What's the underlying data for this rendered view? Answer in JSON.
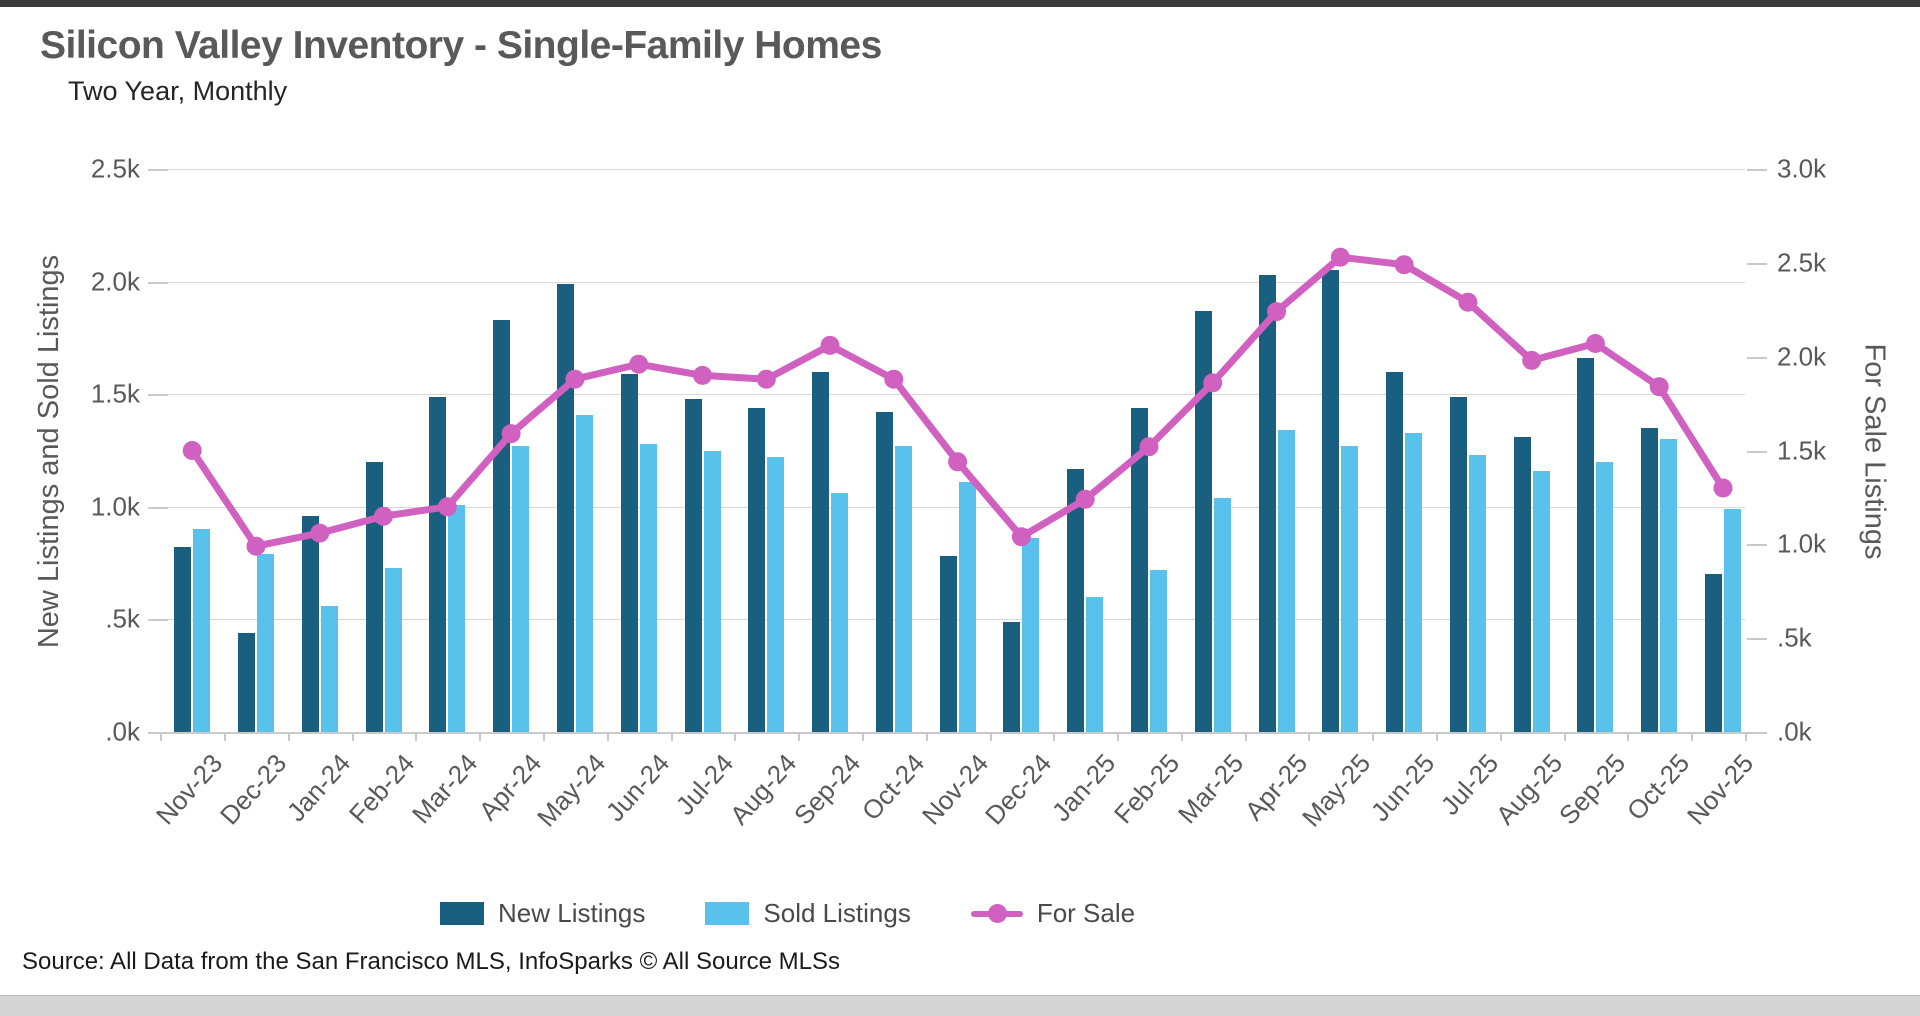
{
  "page": {
    "title": "Silicon Valley Inventory - Single-Family Homes",
    "subtitle": "Two Year, Monthly",
    "source": "Source: All Data from the San Francisco MLS, InfoSparks © All Source MLSs"
  },
  "legend": {
    "items": [
      {
        "label": "New Listings",
        "color": "#1a5f7f",
        "type": "bar"
      },
      {
        "label": "Sold Listings",
        "color": "#58c1ec",
        "type": "bar"
      },
      {
        "label": "For Sale",
        "color": "#d161c0",
        "type": "line"
      }
    ]
  },
  "colors": {
    "new_listings": "#1a5f7f",
    "sold_listings": "#58c1ec",
    "for_sale": "#d161c0",
    "gridline": "#d9d9d9",
    "axis_text": "#595959"
  },
  "chart_data": {
    "type": "bar",
    "subtype": "grouped-bars-with-line",
    "title": "Silicon Valley Inventory - Single-Family Homes",
    "subtitle": "Two Year, Monthly",
    "grid": true,
    "legend_position": "bottom",
    "categories": [
      "Nov-23",
      "Dec-23",
      "Jan-24",
      "Feb-24",
      "Mar-24",
      "Apr-24",
      "May-24",
      "Jun-24",
      "Jul-24",
      "Aug-24",
      "Sep-24",
      "Oct-24",
      "Nov-24",
      "Dec-24",
      "Jan-25",
      "Feb-25",
      "Mar-25",
      "Apr-25",
      "May-25",
      "Jun-25",
      "Jul-25",
      "Aug-25",
      "Sep-25",
      "Oct-25",
      "Nov-25"
    ],
    "series": [
      {
        "name": "New Listings",
        "type": "bar",
        "axis": "left",
        "color": "#1a5f7f",
        "values": [
          820,
          440,
          960,
          1200,
          1490,
          1830,
          1990,
          1590,
          1480,
          1440,
          1600,
          1420,
          780,
          490,
          1170,
          1440,
          1870,
          2030,
          2050,
          1600,
          1490,
          1310,
          1660,
          1350,
          700
        ]
      },
      {
        "name": "Sold Listings",
        "type": "bar",
        "axis": "left",
        "color": "#58c1ec",
        "values": [
          900,
          790,
          560,
          730,
          1010,
          1270,
          1410,
          1280,
          1250,
          1220,
          1060,
          1270,
          1110,
          860,
          600,
          720,
          1040,
          1340,
          1270,
          1330,
          1230,
          1160,
          1200,
          1300,
          990
        ]
      },
      {
        "name": "For Sale",
        "type": "line",
        "axis": "right",
        "color": "#d161c0",
        "values": [
          1500,
          990,
          1060,
          1150,
          1200,
          1590,
          1880,
          1960,
          1900,
          1880,
          2060,
          1880,
          1440,
          1040,
          1240,
          1520,
          1860,
          2240,
          2530,
          2490,
          2290,
          1980,
          2070,
          1840,
          1300
        ]
      }
    ],
    "left_axis": {
      "label": "New Listings and Sold Listings",
      "min": 0,
      "max": 2500,
      "tick_labels": [
        "2.5k",
        "2.0k",
        "1.5k",
        "1.0k",
        ".5k",
        ".0k"
      ]
    },
    "right_axis": {
      "label": "For Sale Listings",
      "min": 0,
      "max": 3000,
      "tick_labels": [
        "3.0k",
        "2.5k",
        "2.0k",
        "1.5k",
        "1.0k",
        ".5k",
        ".0k"
      ]
    }
  }
}
